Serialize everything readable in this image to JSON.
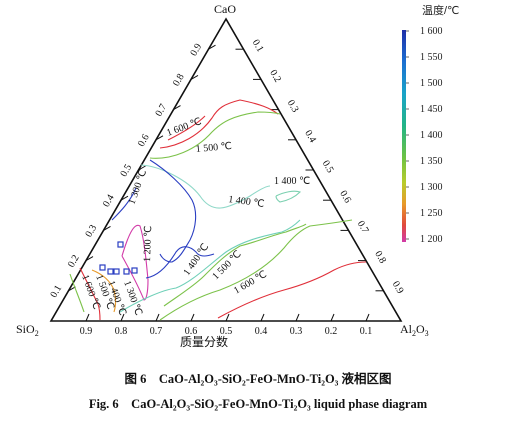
{
  "diagram": {
    "vertices": {
      "top": "CaO",
      "left": "SiO2",
      "right": "Al2O3"
    },
    "bottom_axis_label": "质量分数",
    "ticks": [
      "0.1",
      "0.2",
      "0.3",
      "0.4",
      "0.5",
      "0.6",
      "0.7",
      "0.8",
      "0.9"
    ],
    "colorbar": {
      "title": "温度/℃",
      "ticks": [
        "1 600",
        "1 550",
        "1 500",
        "1 450",
        "1 400",
        "1 350",
        "1 300",
        "1 250",
        "1 200"
      ],
      "colors": [
        "#1f2fa8",
        "#1c6fd1",
        "#1aa3c8",
        "#22b487",
        "#6cc244",
        "#b8cc2c",
        "#e89a2a",
        "#e04a3c",
        "#d23aa8"
      ]
    },
    "isotherm_labels": [
      {
        "text": "1 600 ℃",
        "temp": 1600
      },
      {
        "text": "1 500 ℃",
        "temp": 1500
      },
      {
        "text": "1 400 ℃",
        "temp": 1400
      },
      {
        "text": "1 400 ℃",
        "temp": 1400
      },
      {
        "text": "1 300 ℃",
        "temp": 1300
      },
      {
        "text": "1 200 ℃",
        "temp": 1200
      },
      {
        "text": "1 400 ℃",
        "temp": 1400
      },
      {
        "text": "1 500 ℃",
        "temp": 1500
      },
      {
        "text": "1 600 ℃",
        "temp": 1600
      },
      {
        "text": "1 600 ℃",
        "temp": 1600
      },
      {
        "text": "1 500 ℃",
        "temp": 1500
      },
      {
        "text": "1 400 ℃",
        "temp": 1400
      },
      {
        "text": "1 300 ℃",
        "temp": 1300
      }
    ]
  },
  "caption": {
    "chinese": "图 6　CaO-Al₂O₃-SiO₂-FeO-MnO-Ti₂O₃ 液相区图",
    "english": "Fig. 6　CaO-Al₂O₃-SiO₂-FeO-MnO-Ti₂O₃ liquid phase diagram"
  }
}
